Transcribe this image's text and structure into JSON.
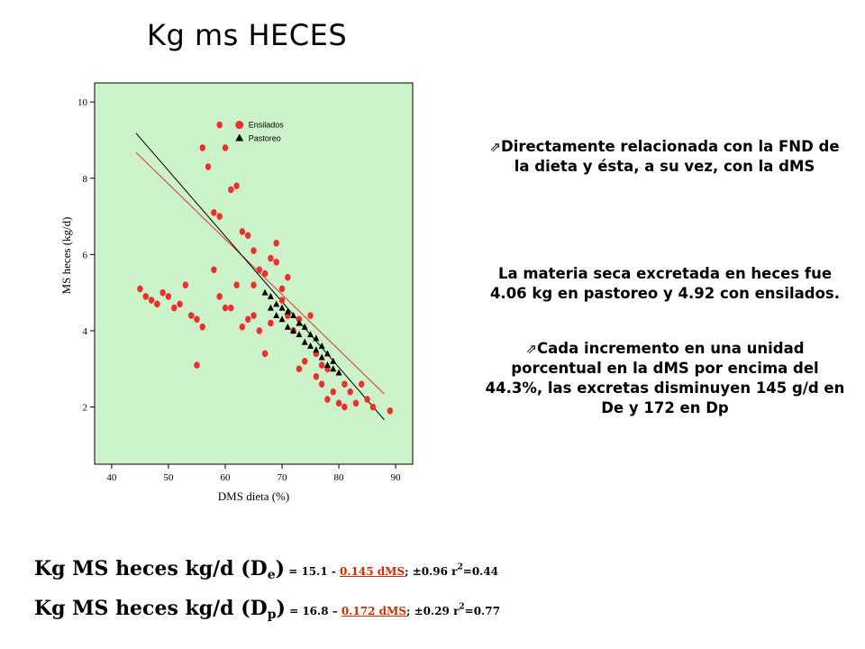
{
  "title": "Kg ms HECES",
  "notes": {
    "note1": "Directamente relacionada con la FND de la dieta y ésta, a su vez, con la dMS",
    "note2": "La materia seca excretada en heces fue 4.06 kg en pastoreo y 4.92 con ensilados.",
    "note3": "Cada incremento en una unidad porcentual en la dMS por encima del 44.3%, las excretas disminuyen 145 g/d en De y 172 en Dp"
  },
  "equations": {
    "eq1": {
      "prefix": "Kg MS heces kg/d (D",
      "sub": "e",
      "close": ")",
      "const": " = 15.1 - ",
      "slope": "0.145 dMS",
      "err": "; ±0.96 r",
      "sup": "2",
      "r2": "=0.44"
    },
    "eq2": {
      "prefix": "Kg MS heces kg/d (D",
      "sub": "p",
      "close": ")",
      "const": " = 16.8 – ",
      "slope": "0.172 dMS",
      "err": "; ±0.29 r",
      "sup": "2",
      "r2": "=0.77"
    }
  },
  "colors": {
    "background": "#ccf2c9",
    "ensilados": "#ee2d2d",
    "pastoreo": "#000000",
    "fit_ensilados": "#e33333",
    "fit_pastoreo": "#000000"
  },
  "chart_data": {
    "type": "scatter",
    "xlabel": "DMS dieta (%)",
    "ylabel": "MS heces (kg/d)",
    "xlim": [
      37,
      93
    ],
    "ylim": [
      0.5,
      10.5
    ],
    "xticks": [
      40,
      50,
      60,
      70,
      80,
      90
    ],
    "yticks": [
      2,
      4,
      6,
      8,
      10
    ],
    "legend": {
      "position": "top-center",
      "entries": [
        "Ensilados",
        "Pastoreo"
      ]
    },
    "series": [
      {
        "name": "Ensilados",
        "marker": "circle",
        "points": [
          [
            45,
            5.1
          ],
          [
            46,
            4.9
          ],
          [
            47,
            4.8
          ],
          [
            48,
            4.7
          ],
          [
            49,
            5.0
          ],
          [
            50,
            4.9
          ],
          [
            51,
            4.6
          ],
          [
            52,
            4.7
          ],
          [
            53,
            5.2
          ],
          [
            54,
            4.4
          ],
          [
            55,
            4.3
          ],
          [
            55,
            3.1
          ],
          [
            56,
            4.1
          ],
          [
            56,
            8.8
          ],
          [
            57,
            8.3
          ],
          [
            58,
            7.1
          ],
          [
            58,
            5.6
          ],
          [
            59,
            9.4
          ],
          [
            59,
            7.0
          ],
          [
            59,
            4.9
          ],
          [
            60,
            4.6
          ],
          [
            60,
            8.8
          ],
          [
            61,
            7.7
          ],
          [
            61,
            4.6
          ],
          [
            62,
            7.8
          ],
          [
            62,
            5.2
          ],
          [
            63,
            6.6
          ],
          [
            63,
            4.1
          ],
          [
            64,
            6.5
          ],
          [
            64,
            4.3
          ],
          [
            65,
            6.1
          ],
          [
            65,
            5.2
          ],
          [
            65,
            4.4
          ],
          [
            66,
            5.6
          ],
          [
            66,
            4.0
          ],
          [
            67,
            5.5
          ],
          [
            67,
            3.4
          ],
          [
            68,
            5.9
          ],
          [
            68,
            4.2
          ],
          [
            69,
            5.8
          ],
          [
            69,
            6.3
          ],
          [
            70,
            5.1
          ],
          [
            70,
            4.8
          ],
          [
            71,
            4.4
          ],
          [
            71,
            5.4
          ],
          [
            72,
            4.0
          ],
          [
            73,
            4.3
          ],
          [
            73,
            3.0
          ],
          [
            74,
            3.2
          ],
          [
            75,
            4.4
          ],
          [
            76,
            3.4
          ],
          [
            76,
            2.8
          ],
          [
            77,
            3.1
          ],
          [
            77,
            2.6
          ],
          [
            78,
            3.0
          ],
          [
            78,
            2.2
          ],
          [
            79,
            2.4
          ],
          [
            80,
            2.1
          ],
          [
            81,
            2.6
          ],
          [
            81,
            2.0
          ],
          [
            82,
            2.4
          ],
          [
            83,
            2.1
          ],
          [
            84,
            2.6
          ],
          [
            85,
            2.2
          ],
          [
            86,
            2.0
          ],
          [
            89,
            1.9
          ]
        ]
      },
      {
        "name": "Pastoreo",
        "marker": "triangle",
        "points": [
          [
            67,
            5.0
          ],
          [
            68,
            4.9
          ],
          [
            68,
            4.6
          ],
          [
            69,
            4.7
          ],
          [
            69,
            4.4
          ],
          [
            70,
            4.6
          ],
          [
            70,
            4.3
          ],
          [
            71,
            4.5
          ],
          [
            71,
            4.1
          ],
          [
            72,
            4.4
          ],
          [
            72,
            4.0
          ],
          [
            73,
            4.2
          ],
          [
            73,
            3.9
          ],
          [
            74,
            4.1
          ],
          [
            74,
            3.7
          ],
          [
            75,
            3.9
          ],
          [
            75,
            3.6
          ],
          [
            76,
            3.8
          ],
          [
            76,
            3.5
          ],
          [
            77,
            3.6
          ],
          [
            77,
            3.3
          ],
          [
            78,
            3.4
          ],
          [
            78,
            3.1
          ],
          [
            79,
            3.2
          ],
          [
            79,
            3.0
          ],
          [
            80,
            2.9
          ]
        ]
      }
    ],
    "fits": [
      {
        "name": "Ensilados",
        "intercept": 15.1,
        "slope": -0.145,
        "x": [
          44.3,
          88
        ]
      },
      {
        "name": "Pastoreo",
        "intercept": 16.8,
        "slope": -0.172,
        "x": [
          44.3,
          88
        ]
      }
    ]
  }
}
